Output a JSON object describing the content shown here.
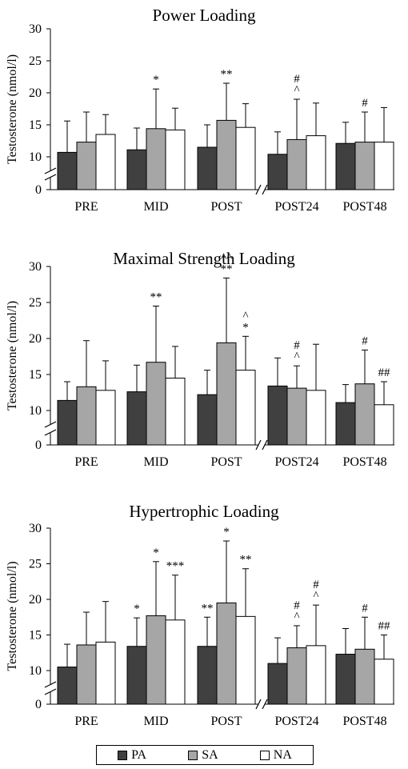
{
  "chart_data": [
    {
      "type": "bar",
      "title": "Power Loading",
      "ylabel": "Testosterone (nmol/l)",
      "xlabel": "",
      "ylim": [
        0,
        30
      ],
      "yticks": [
        0,
        10,
        15,
        20,
        25,
        30
      ],
      "axis_break": true,
      "categories": [
        "PRE",
        "MID",
        "POST",
        "POST24",
        "POST48"
      ],
      "series": [
        {
          "name": "PA",
          "values": [
            10.7,
            11.1,
            11.5,
            10.4,
            12.1
          ],
          "sd": [
            4.9,
            3.4,
            3.5,
            3.5,
            3.3
          ],
          "annotations": [
            "",
            "",
            "",
            "",
            ""
          ]
        },
        {
          "name": "SA",
          "values": [
            12.3,
            14.4,
            15.7,
            12.7,
            12.3
          ],
          "sd": [
            4.7,
            6.2,
            5.8,
            6.3,
            4.7
          ],
          "annotations": [
            "",
            "*",
            "**",
            "^\n#",
            "#"
          ]
        },
        {
          "name": "NA",
          "values": [
            13.5,
            14.2,
            14.6,
            13.3,
            12.3
          ],
          "sd": [
            3.1,
            3.4,
            3.7,
            5.1,
            5.4
          ],
          "annotations": [
            "",
            "",
            "",
            "",
            ""
          ]
        }
      ]
    },
    {
      "type": "bar",
      "title": "Maximal Strength Loading",
      "ylabel": "Testosterone (nmol/l)",
      "xlabel": "",
      "ylim": [
        0,
        30
      ],
      "yticks": [
        0,
        10,
        15,
        20,
        25,
        30
      ],
      "axis_break": true,
      "categories": [
        "PRE",
        "MID",
        "POST",
        "POST24",
        "POST48"
      ],
      "series": [
        {
          "name": "PA",
          "values": [
            11.4,
            12.6,
            12.2,
            13.4,
            11.1
          ],
          "sd": [
            2.6,
            3.7,
            3.4,
            3.9,
            2.5
          ],
          "annotations": [
            "",
            "",
            "",
            "",
            ""
          ]
        },
        {
          "name": "SA",
          "values": [
            13.3,
            16.7,
            19.4,
            13.1,
            13.7
          ],
          "sd": [
            6.4,
            7.8,
            9.0,
            3.1,
            4.7
          ],
          "annotations": [
            "",
            "**",
            "**\n^^",
            "^\n#",
            "#"
          ]
        },
        {
          "name": "NA",
          "values": [
            12.8,
            14.5,
            15.6,
            12.8,
            10.8
          ],
          "sd": [
            4.1,
            4.4,
            4.7,
            6.4,
            3.2
          ],
          "annotations": [
            "",
            "",
            "*\n^",
            "",
            "##"
          ]
        }
      ]
    },
    {
      "type": "bar",
      "title": "Hypertrophic Loading",
      "ylabel": "Testosterone (nmol/l)",
      "xlabel": "",
      "ylim": [
        0,
        30
      ],
      "yticks": [
        0,
        10,
        15,
        20,
        25,
        30
      ],
      "axis_break": true,
      "categories": [
        "PRE",
        "MID",
        "POST",
        "POST24",
        "POST48"
      ],
      "series": [
        {
          "name": "PA",
          "values": [
            10.5,
            13.4,
            13.4,
            11.0,
            12.3
          ],
          "sd": [
            3.2,
            4.0,
            4.1,
            3.6,
            3.6
          ],
          "annotations": [
            "",
            "*",
            "**",
            "",
            ""
          ]
        },
        {
          "name": "SA",
          "values": [
            13.6,
            17.7,
            19.5,
            13.2,
            13.0
          ],
          "sd": [
            4.6,
            7.6,
            8.7,
            3.1,
            4.5
          ],
          "annotations": [
            "",
            "*",
            "*",
            "^\n#",
            "#"
          ]
        },
        {
          "name": "NA",
          "values": [
            14.0,
            17.1,
            17.6,
            13.5,
            11.6
          ],
          "sd": [
            5.7,
            6.3,
            6.7,
            5.7,
            3.4
          ],
          "annotations": [
            "",
            "***",
            "**",
            "^\n#",
            "##"
          ]
        }
      ]
    }
  ],
  "legend": {
    "items": [
      {
        "label": "PA",
        "color": "#404040"
      },
      {
        "label": "SA",
        "color": "#a6a6a6"
      },
      {
        "label": "NA",
        "color": "#ffffff"
      }
    ]
  }
}
